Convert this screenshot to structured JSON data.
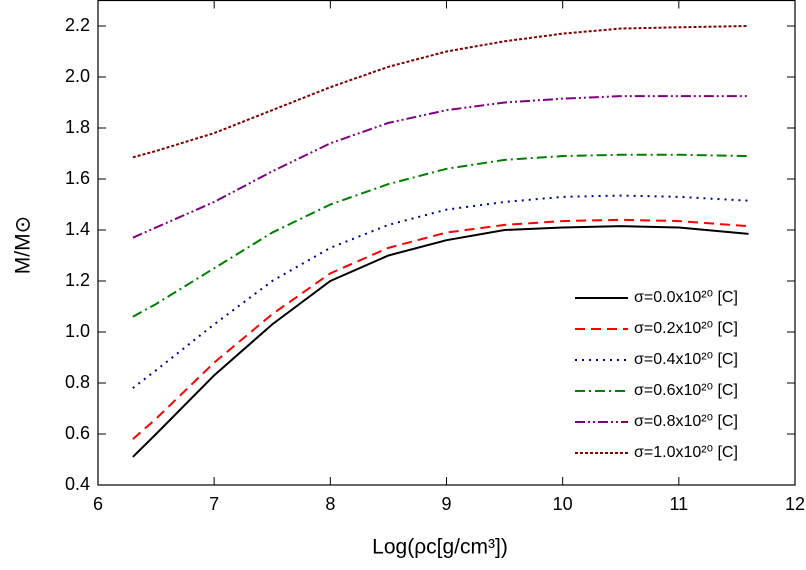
{
  "chart_data": {
    "type": "line",
    "x_label": "Log(ρc[g/cm³])",
    "y_label": "M/M⊙",
    "x": [
      6.3,
      6.5,
      7,
      7.5,
      8,
      8.5,
      9,
      9.5,
      10,
      10.5,
      11,
      11.6
    ],
    "series": [
      {
        "name": "σ=0.0x10²⁰ [C]",
        "color": "#000000",
        "style": "solid",
        "values": [
          0.51,
          0.6,
          0.83,
          1.03,
          1.2,
          1.3,
          1.36,
          1.4,
          1.41,
          1.415,
          1.41,
          1.385
        ]
      },
      {
        "name": "σ=0.2x10²⁰ [C]",
        "color": "#ff0000",
        "style": "dashed",
        "values": [
          0.58,
          0.66,
          0.88,
          1.07,
          1.23,
          1.33,
          1.39,
          1.42,
          1.435,
          1.44,
          1.435,
          1.415
        ]
      },
      {
        "name": "σ=0.4x10²⁰ [C]",
        "color": "#00008b",
        "style": "dotted",
        "values": [
          0.78,
          0.85,
          1.03,
          1.2,
          1.33,
          1.42,
          1.48,
          1.51,
          1.53,
          1.535,
          1.53,
          1.515
        ]
      },
      {
        "name": "σ=0.6x10²⁰ [C]",
        "color": "#008000",
        "style": "dashdot",
        "values": [
          1.06,
          1.11,
          1.25,
          1.39,
          1.5,
          1.58,
          1.64,
          1.675,
          1.69,
          1.695,
          1.695,
          1.69
        ]
      },
      {
        "name": "σ=0.8x10²⁰ [C]",
        "color": "#800080",
        "style": "dashdotdot",
        "values": [
          1.37,
          1.41,
          1.51,
          1.63,
          1.74,
          1.82,
          1.87,
          1.9,
          1.915,
          1.925,
          1.925,
          1.925
        ]
      },
      {
        "name": "σ=1.0x10²⁰ [C]",
        "color": "#800000",
        "style": "shortdash",
        "values": [
          1.685,
          1.71,
          1.78,
          1.87,
          1.96,
          2.04,
          2.1,
          2.14,
          2.17,
          2.19,
          2.195,
          2.2
        ]
      }
    ],
    "xlim": [
      6,
      12
    ],
    "xticks": [
      6,
      7,
      8,
      9,
      10,
      11,
      12
    ],
    "ylim": [
      0.4,
      2.3
    ],
    "yticks": [
      {
        "value": 0.4,
        "label": "0.4"
      },
      {
        "value": 0.6,
        "label": "0.6"
      },
      {
        "value": 0.8,
        "label": "0.8"
      },
      {
        "value": 1.0,
        "label": "1.0"
      },
      {
        "value": 1.2,
        "label": "1.2"
      },
      {
        "value": 1.4,
        "label": "1.4"
      },
      {
        "value": 1.6,
        "label": "1.6"
      },
      {
        "value": 1.8,
        "label": "1.8"
      },
      {
        "value": 2.0,
        "label": "2.0"
      },
      {
        "value": 2.2,
        "label": "2.2"
      }
    ],
    "grid": false,
    "legend": "lower-right"
  }
}
